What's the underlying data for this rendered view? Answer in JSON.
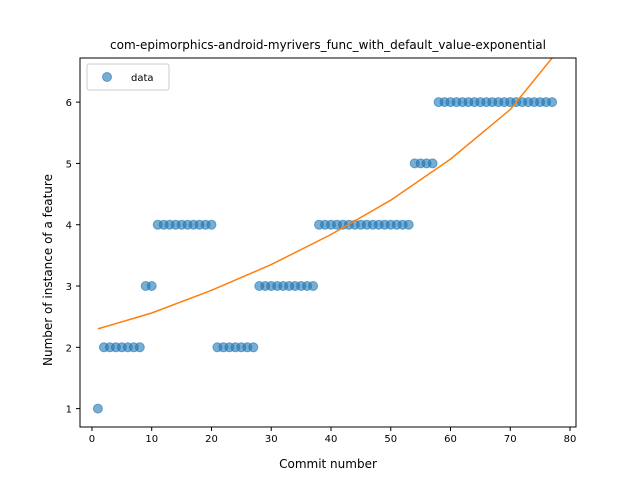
{
  "chart_data": {
    "type": "scatter",
    "title": "com-epimorphics-android-myrivers_func_with_default_value-exponential",
    "xlabel": "Commit number",
    "ylabel": "Number of instance of a feature",
    "xlim": [
      -2,
      81
    ],
    "ylim": [
      0.7,
      6.72
    ],
    "xticks": [
      0,
      10,
      20,
      30,
      40,
      50,
      60,
      70,
      80
    ],
    "yticks": [
      1,
      2,
      3,
      4,
      5,
      6
    ],
    "legend": {
      "position": "top-left",
      "entries": [
        "data"
      ]
    },
    "grid": false,
    "series": [
      {
        "name": "data",
        "kind": "scatter",
        "color": "#1f77b4",
        "points": [
          [
            1,
            1
          ],
          [
            2,
            2
          ],
          [
            3,
            2
          ],
          [
            4,
            2
          ],
          [
            5,
            2
          ],
          [
            6,
            2
          ],
          [
            7,
            2
          ],
          [
            8,
            2
          ],
          [
            9,
            3
          ],
          [
            10,
            3
          ],
          [
            11,
            4
          ],
          [
            12,
            4
          ],
          [
            13,
            4
          ],
          [
            14,
            4
          ],
          [
            15,
            4
          ],
          [
            16,
            4
          ],
          [
            17,
            4
          ],
          [
            18,
            4
          ],
          [
            19,
            4
          ],
          [
            20,
            4
          ],
          [
            21,
            2
          ],
          [
            22,
            2
          ],
          [
            23,
            2
          ],
          [
            24,
            2
          ],
          [
            25,
            2
          ],
          [
            26,
            2
          ],
          [
            27,
            2
          ],
          [
            28,
            3
          ],
          [
            29,
            3
          ],
          [
            30,
            3
          ],
          [
            31,
            3
          ],
          [
            32,
            3
          ],
          [
            33,
            3
          ],
          [
            34,
            3
          ],
          [
            35,
            3
          ],
          [
            36,
            3
          ],
          [
            37,
            3
          ],
          [
            38,
            4
          ],
          [
            39,
            4
          ],
          [
            40,
            4
          ],
          [
            41,
            4
          ],
          [
            42,
            4
          ],
          [
            43,
            4
          ],
          [
            44,
            4
          ],
          [
            45,
            4
          ],
          [
            46,
            4
          ],
          [
            47,
            4
          ],
          [
            48,
            4
          ],
          [
            49,
            4
          ],
          [
            50,
            4
          ],
          [
            51,
            4
          ],
          [
            52,
            4
          ],
          [
            53,
            4
          ],
          [
            54,
            5
          ],
          [
            55,
            5
          ],
          [
            56,
            5
          ],
          [
            57,
            5
          ],
          [
            58,
            6
          ],
          [
            59,
            6
          ],
          [
            60,
            6
          ],
          [
            61,
            6
          ],
          [
            62,
            6
          ],
          [
            63,
            6
          ],
          [
            64,
            6
          ],
          [
            65,
            6
          ],
          [
            66,
            6
          ],
          [
            67,
            6
          ],
          [
            68,
            6
          ],
          [
            69,
            6
          ],
          [
            70,
            6
          ],
          [
            71,
            6
          ],
          [
            72,
            6
          ],
          [
            73,
            6
          ],
          [
            74,
            6
          ],
          [
            75,
            6
          ],
          [
            76,
            6
          ],
          [
            77,
            6
          ]
        ]
      },
      {
        "kind": "line",
        "color": "#ff7f0e",
        "points": [
          [
            1,
            2.3
          ],
          [
            10,
            2.56
          ],
          [
            20,
            2.93
          ],
          [
            30,
            3.35
          ],
          [
            40,
            3.84
          ],
          [
            50,
            4.4
          ],
          [
            60,
            5.07
          ],
          [
            70,
            5.88
          ],
          [
            77,
            6.72
          ]
        ]
      }
    ]
  }
}
